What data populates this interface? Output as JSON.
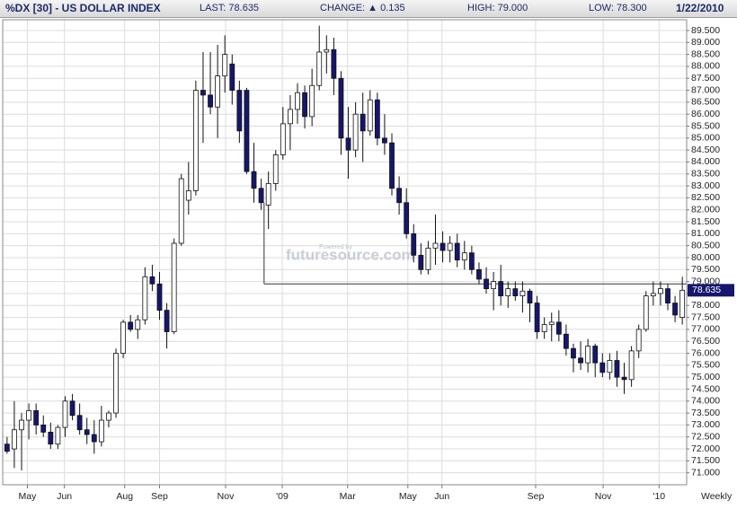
{
  "header": {
    "title": "%DX [30] - US DOLLAR INDEX",
    "last": "LAST: 78.635",
    "change": "CHANGE: ▲ 0.135",
    "high": "HIGH: 79.000",
    "low": "LOW: 78.300",
    "date": "1/22/2010"
  },
  "chart_data": {
    "type": "candlestick",
    "period_label": "Weekly",
    "watermark_caption": "Powered by",
    "watermark": "futuresource.com",
    "up_color": "#ffffff",
    "down_color": "#16166e",
    "grid": true,
    "last_price": 78.635,
    "annotation_line": {
      "y": 78.9,
      "y_top": 82.3,
      "x_start": 35.4
    },
    "xlim": [
      -0.6,
      93.6
    ],
    "xticks": [
      {
        "value": 2.8,
        "label": "May"
      },
      {
        "value": 7.9,
        "label": "Jun"
      },
      {
        "value": 16.2,
        "label": "Aug"
      },
      {
        "value": 21,
        "label": "Sep"
      },
      {
        "value": 30.1,
        "label": "Nov"
      },
      {
        "value": 37.9,
        "label": "'09"
      },
      {
        "value": 46.9,
        "label": "Mar"
      },
      {
        "value": 55.2,
        "label": "May"
      },
      {
        "value": 59.9,
        "label": "Jun"
      },
      {
        "value": 72.8,
        "label": "Sep"
      },
      {
        "value": 82.1,
        "label": "Nov"
      },
      {
        "value": 89.8,
        "label": "'10"
      }
    ],
    "ylim": [
      70.5,
      89.95
    ],
    "yticks": [
      {
        "value": 71,
        "label": "71.000"
      },
      {
        "value": 71.5,
        "label": "71.500"
      },
      {
        "value": 72,
        "label": "72.000"
      },
      {
        "value": 72.5,
        "label": "72.500"
      },
      {
        "value": 73,
        "label": "73.000"
      },
      {
        "value": 73.5,
        "label": "73.500"
      },
      {
        "value": 74,
        "label": "74.000"
      },
      {
        "value": 74.5,
        "label": "74.500"
      },
      {
        "value": 75,
        "label": "75.000"
      },
      {
        "value": 75.5,
        "label": "75.500"
      },
      {
        "value": 76,
        "label": "76.000"
      },
      {
        "value": 76.5,
        "label": "76.500"
      },
      {
        "value": 77,
        "label": "77.000"
      },
      {
        "value": 77.5,
        "label": "77.500"
      },
      {
        "value": 78,
        "label": "78.000"
      },
      {
        "value": 78.5,
        "label": "78.500"
      },
      {
        "value": 79,
        "label": "79.000"
      },
      {
        "value": 79.5,
        "label": "79.500"
      },
      {
        "value": 80,
        "label": "80.000"
      },
      {
        "value": 80.5,
        "label": "80.500"
      },
      {
        "value": 81,
        "label": "81.000"
      },
      {
        "value": 81.5,
        "label": "81.500"
      },
      {
        "value": 82,
        "label": "82.000"
      },
      {
        "value": 82.5,
        "label": "82.500"
      },
      {
        "value": 83,
        "label": "83.000"
      },
      {
        "value": 83.5,
        "label": "83.500"
      },
      {
        "value": 84,
        "label": "84.000"
      },
      {
        "value": 84.5,
        "label": "84.500"
      },
      {
        "value": 85,
        "label": "85.000"
      },
      {
        "value": 85.5,
        "label": "85.500"
      },
      {
        "value": 86,
        "label": "86.000"
      },
      {
        "value": 86.5,
        "label": "86.500"
      },
      {
        "value": 87,
        "label": "87.000"
      },
      {
        "value": 87.5,
        "label": "87.500"
      },
      {
        "value": 88,
        "label": "88.000"
      },
      {
        "value": 88.5,
        "label": "88.500"
      },
      {
        "value": 89,
        "label": "89.000"
      },
      {
        "value": 89.5,
        "label": "89.500"
      }
    ],
    "open": [
      72.2,
      72.0,
      72.8,
      73.2,
      73.6,
      73.0,
      72.7,
      72.2,
      72.9,
      74.0,
      73.4,
      72.8,
      72.6,
      72.3,
      73.2,
      73.5,
      76.0,
      77.3,
      77.0,
      77.4,
      79.2,
      78.9,
      77.8,
      76.9,
      80.6,
      82.4,
      82.8,
      87.0,
      86.8,
      86.3,
      87.6,
      88.1,
      87.0,
      87.0,
      83.6,
      82.9,
      82.2,
      83.1,
      84.3,
      85.6,
      86.2,
      86.9,
      85.9,
      87.2,
      88.6,
      88.7,
      87.5,
      85.0,
      84.5,
      86.0,
      85.3,
      86.6,
      85.0,
      84.8,
      82.9,
      82.3,
      81.0,
      80.1,
      79.5,
      80.4,
      80.6,
      80.3,
      80.6,
      79.9,
      80.2,
      79.5,
      79.1,
      78.7,
      79.0,
      78.4,
      78.7,
      78.4,
      78.6,
      78.1,
      76.9,
      77.2,
      77.3,
      76.8,
      76.2,
      75.8,
      75.6,
      76.3,
      75.6,
      75.2,
      75.7,
      75.0,
      74.9,
      76.1,
      77.0,
      78.4,
      78.5,
      78.7,
      78.1,
      77.5
    ],
    "high": [
      72.5,
      74.0,
      73.5,
      73.9,
      73.9,
      73.4,
      73.1,
      73.0,
      74.2,
      74.3,
      73.9,
      73.3,
      73.2,
      73.8,
      73.6,
      76.2,
      77.4,
      77.6,
      77.6,
      79.6,
      79.7,
      79.4,
      78.1,
      80.8,
      83.5,
      84.0,
      87.4,
      88.6,
      88.6,
      88.9,
      89.3,
      88.5,
      87.4,
      87.1,
      84.8,
      83.3,
      83.6,
      84.5,
      86.3,
      86.8,
      87.3,
      87.2,
      87.9,
      89.7,
      89.3,
      89.2,
      87.8,
      86.3,
      86.5,
      86.9,
      87.0,
      86.9,
      86.0,
      85.2,
      83.4,
      82.9,
      81.4,
      80.6,
      80.7,
      81.8,
      81.1,
      80.9,
      81.0,
      80.7,
      80.5,
      79.8,
      79.6,
      79.4,
      79.7,
      79.0,
      79.0,
      79.0,
      78.7,
      78.4,
      77.5,
      77.7,
      77.8,
      77.2,
      76.4,
      76.5,
      76.6,
      76.4,
      76.0,
      76.0,
      76.1,
      75.6,
      76.3,
      77.2,
      78.6,
      79.0,
      79.0,
      78.9,
      78.4,
      79.2
    ],
    "low": [
      71.8,
      71.2,
      71.1,
      72.4,
      72.6,
      72.5,
      72.0,
      72.0,
      72.5,
      73.2,
      72.6,
      72.2,
      71.8,
      72.1,
      72.9,
      73.3,
      75.8,
      76.9,
      76.6,
      77.2,
      78.6,
      77.4,
      76.2,
      76.8,
      80.5,
      81.8,
      82.6,
      84.8,
      86.0,
      85.0,
      86.9,
      86.4,
      84.8,
      83.5,
      82.3,
      82.0,
      81.2,
      82.8,
      84.1,
      84.5,
      85.6,
      85.4,
      85.5,
      87.0,
      87.7,
      86.8,
      84.3,
      83.3,
      84.2,
      84.0,
      85.1,
      84.7,
      84.3,
      82.6,
      81.8,
      80.8,
      79.8,
      79.3,
      79.3,
      79.7,
      79.8,
      79.8,
      79.6,
      79.5,
      79.3,
      78.9,
      78.5,
      77.8,
      78.0,
      77.9,
      78.2,
      77.7,
      77.3,
      76.6,
      76.6,
      76.5,
      76.5,
      75.9,
      75.2,
      75.3,
      75.2,
      75.0,
      75.0,
      74.9,
      74.6,
      74.3,
      74.6,
      75.8,
      76.9,
      78.0,
      78.0,
      77.8,
      77.3,
      77.2
    ],
    "close": [
      71.9,
      72.8,
      73.2,
      73.6,
      73.0,
      72.7,
      72.2,
      72.9,
      74.0,
      73.4,
      72.8,
      72.6,
      72.3,
      73.2,
      73.5,
      76.0,
      77.3,
      77.0,
      77.4,
      79.2,
      78.9,
      77.8,
      76.9,
      80.6,
      83.3,
      82.8,
      87.0,
      86.8,
      86.3,
      87.6,
      88.5,
      87.0,
      85.3,
      83.6,
      82.9,
      82.3,
      83.1,
      84.3,
      85.6,
      86.2,
      86.9,
      85.9,
      87.2,
      88.6,
      88.7,
      87.5,
      85.0,
      84.5,
      86.0,
      85.3,
      86.6,
      85.0,
      84.8,
      82.9,
      82.3,
      81.0,
      80.1,
      79.5,
      80.4,
      80.6,
      80.3,
      80.6,
      79.9,
      80.2,
      79.5,
      79.1,
      78.7,
      79.0,
      78.4,
      78.7,
      78.4,
      78.6,
      78.1,
      76.9,
      77.2,
      77.3,
      76.8,
      76.2,
      75.8,
      75.6,
      76.3,
      75.6,
      75.2,
      75.7,
      75.0,
      74.9,
      76.1,
      77.0,
      78.4,
      78.5,
      78.7,
      78.1,
      77.6,
      78.635
    ]
  }
}
